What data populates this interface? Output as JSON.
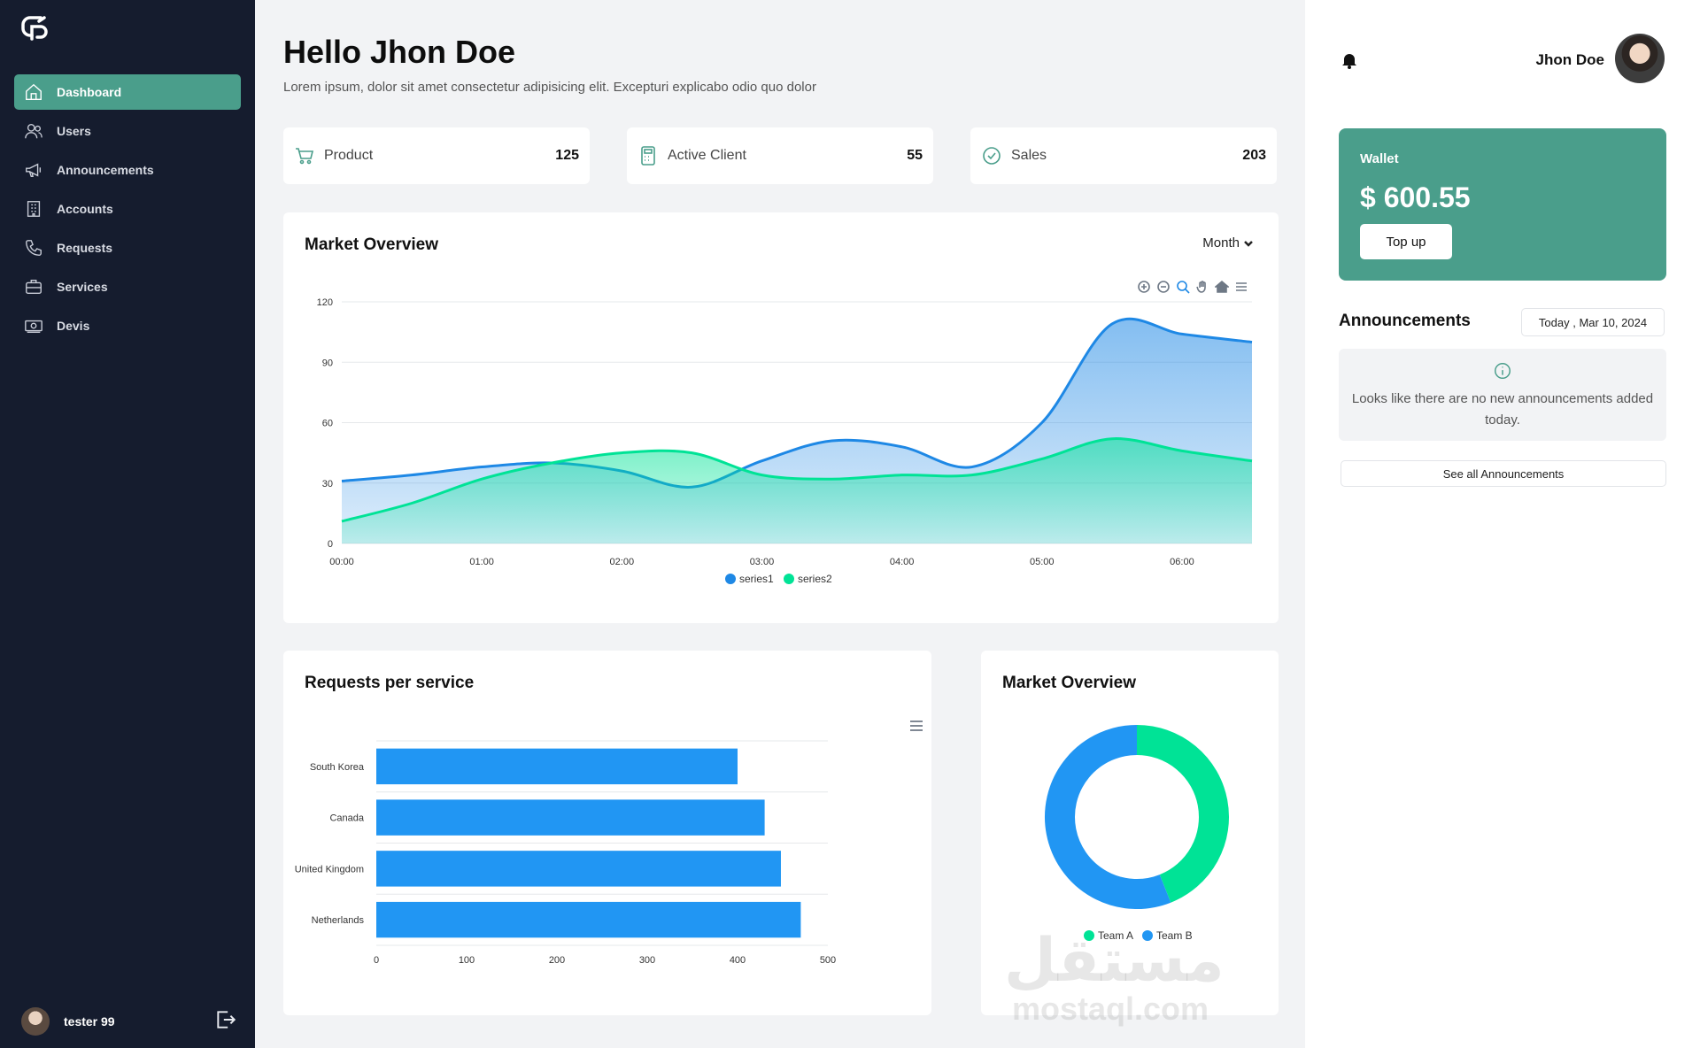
{
  "sidebar": {
    "items": [
      {
        "label": "Dashboard",
        "icon": "home-icon",
        "active": true
      },
      {
        "label": "Users",
        "icon": "users-icon"
      },
      {
        "label": "Announcements",
        "icon": "megaphone-icon"
      },
      {
        "label": "Accounts",
        "icon": "building-icon"
      },
      {
        "label": "Requests",
        "icon": "phone-icon"
      },
      {
        "label": "Services",
        "icon": "briefcase-icon"
      },
      {
        "label": "Devis",
        "icon": "banknote-icon"
      }
    ],
    "user": {
      "name": "tester 99"
    }
  },
  "header": {
    "greeting": "Hello Jhon Doe",
    "subtitle": "Lorem ipsum, dolor sit amet consectetur adipisicing elit. Excepturi explicabo odio quo dolor"
  },
  "stats": [
    {
      "label": "Product",
      "value": "125",
      "icon": "cart-icon"
    },
    {
      "label": "Active Client",
      "value": "55",
      "icon": "calculator-icon"
    },
    {
      "label": "Sales",
      "value": "203",
      "icon": "check-circle-icon"
    }
  ],
  "market_overview": {
    "title": "Market Overview",
    "period": "Month"
  },
  "requests_card": {
    "title": "Requests per service"
  },
  "pie_card": {
    "title": "Market Overview"
  },
  "right_panel": {
    "username": "Jhon Doe",
    "wallet": {
      "label": "Wallet",
      "amount": "$ 600.55",
      "button": "Top up"
    },
    "announcements": {
      "title": "Announcements",
      "date": "Today , Mar 10, 2024",
      "empty_text": "Looks like there are no new announcements added today.",
      "see_all": "See all Announcements"
    }
  },
  "watermark": {
    "arabic": "مستقل",
    "latin": "mostaql.com"
  },
  "colors": {
    "sidebar_bg": "#151c2e",
    "accent": "#4a9e8b",
    "series1": "#1e88e5",
    "series2": "#00e396",
    "bar": "#2196f3"
  },
  "chart_data": [
    {
      "type": "area",
      "x": [
        "00:00",
        "00:30",
        "01:00",
        "01:30",
        "02:00",
        "02:30",
        "03:00",
        "03:30",
        "04:00",
        "04:30",
        "05:00",
        "05:30",
        "06:00",
        "06:30"
      ],
      "xticks": [
        "00:00",
        "01:00",
        "02:00",
        "03:00",
        "04:00",
        "05:00",
        "06:00"
      ],
      "series": [
        {
          "name": "series1",
          "values": [
            31,
            34,
            38,
            40,
            36,
            28,
            41,
            51,
            48,
            38,
            60,
            109,
            104,
            100
          ]
        },
        {
          "name": "series2",
          "values": [
            11,
            20,
            32,
            40,
            45,
            45,
            34,
            32,
            34,
            34,
            42,
            52,
            46,
            41
          ]
        }
      ],
      "ylim": [
        0,
        120
      ],
      "yticks": [
        0,
        30,
        60,
        90,
        120
      ],
      "legend": "bottom-center",
      "grid": true
    },
    {
      "type": "bar",
      "orientation": "horizontal",
      "categories": [
        "South Korea",
        "Canada",
        "United Kingdom",
        "Netherlands"
      ],
      "values": [
        400,
        430,
        448,
        470
      ],
      "xlim": [
        0,
        500
      ],
      "xticks": [
        0,
        100,
        200,
        300,
        400,
        500
      ],
      "grid": true
    },
    {
      "type": "pie",
      "donut": true,
      "categories": [
        "Team A",
        "Team B"
      ],
      "values": [
        44,
        56
      ],
      "legend": "bottom-center"
    }
  ]
}
